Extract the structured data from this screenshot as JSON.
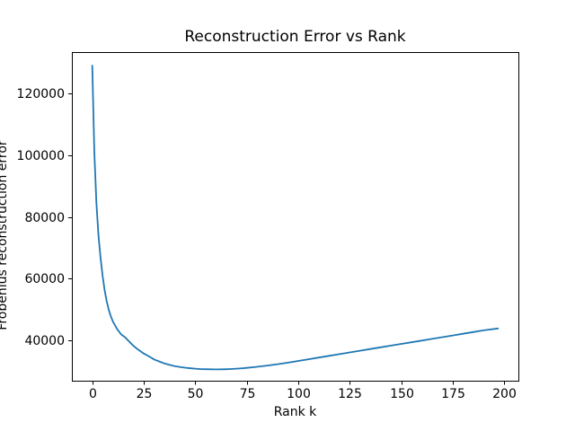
{
  "chart_data": {
    "type": "line",
    "title": "Reconstruction Error vs Rank",
    "xlabel": "Rank k",
    "ylabel": "Frobenius reconstruction error",
    "grid": false,
    "legend_position": "none",
    "line_color": "#1f77b4",
    "axis_color": "#000000",
    "background_color": "#ffffff",
    "xlim": [
      -9.9,
      206.9
    ],
    "ylim": [
      27000,
      133350
    ],
    "xticks": [
      0,
      25,
      50,
      75,
      100,
      125,
      150,
      175,
      200
    ],
    "yticks": [
      40000,
      60000,
      80000,
      100000,
      120000
    ],
    "series": [
      {
        "name": "frobenius-reconstruction-error",
        "points": [
          [
            0,
            129000
          ],
          [
            1,
            101000
          ],
          [
            2,
            84500
          ],
          [
            3,
            74000
          ],
          [
            4,
            66800
          ],
          [
            5,
            61000
          ],
          [
            6,
            56400
          ],
          [
            7,
            52800
          ],
          [
            8,
            50000
          ],
          [
            9,
            47900
          ],
          [
            10,
            46200
          ],
          [
            12,
            43800
          ],
          [
            14,
            42000
          ],
          [
            16,
            41000
          ],
          [
            18,
            39600
          ],
          [
            20,
            38300
          ],
          [
            22,
            37200
          ],
          [
            25,
            35800
          ],
          [
            28,
            34700
          ],
          [
            30,
            33900
          ],
          [
            33,
            33100
          ],
          [
            35,
            32600
          ],
          [
            38,
            32050
          ],
          [
            40,
            31750
          ],
          [
            43,
            31400
          ],
          [
            45,
            31200
          ],
          [
            48,
            31000
          ],
          [
            50,
            30880
          ],
          [
            53,
            30760
          ],
          [
            55,
            30710
          ],
          [
            58,
            30680
          ],
          [
            60,
            30670
          ],
          [
            63,
            30690
          ],
          [
            65,
            30730
          ],
          [
            68,
            30810
          ],
          [
            70,
            30900
          ],
          [
            73,
            31040
          ],
          [
            75,
            31160
          ],
          [
            78,
            31350
          ],
          [
            80,
            31500
          ],
          [
            85,
            31900
          ],
          [
            90,
            32350
          ],
          [
            95,
            32850
          ],
          [
            100,
            33400
          ],
          [
            105,
            33950
          ],
          [
            110,
            34500
          ],
          [
            115,
            35050
          ],
          [
            120,
            35600
          ],
          [
            125,
            36150
          ],
          [
            130,
            36700
          ],
          [
            135,
            37250
          ],
          [
            140,
            37800
          ],
          [
            145,
            38350
          ],
          [
            150,
            38900
          ],
          [
            155,
            39450
          ],
          [
            160,
            40000
          ],
          [
            165,
            40550
          ],
          [
            170,
            41100
          ],
          [
            175,
            41650
          ],
          [
            180,
            42200
          ],
          [
            185,
            42750
          ],
          [
            190,
            43300
          ],
          [
            197,
            43900
          ]
        ]
      }
    ]
  }
}
